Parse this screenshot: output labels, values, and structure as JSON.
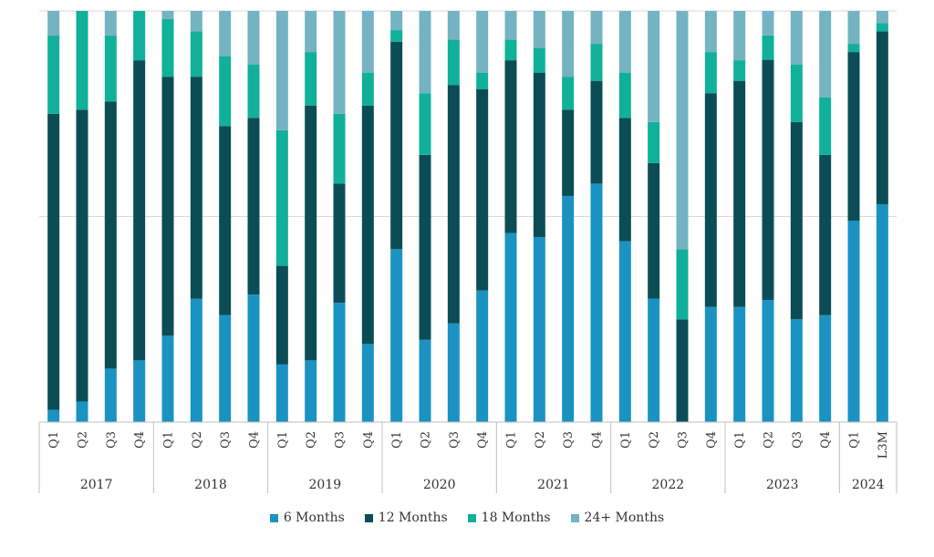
{
  "chart_data": {
    "type": "bar",
    "stacked": true,
    "normalized": true,
    "ylim": [
      0,
      1
    ],
    "grid": true,
    "legend_position": "bottom",
    "categories": [
      "Q1",
      "Q2",
      "Q3",
      "Q4",
      "Q1",
      "Q2",
      "Q3",
      "Q4",
      "Q1",
      "Q2",
      "Q3",
      "Q4",
      "Q1",
      "Q2",
      "Q3",
      "Q4",
      "Q1",
      "Q2",
      "Q3",
      "Q4",
      "Q1",
      "Q2",
      "Q3",
      "Q4",
      "Q1",
      "Q2",
      "Q3",
      "Q4",
      "Q1",
      "L3M"
    ],
    "groups": [
      {
        "label": "2017",
        "count": 4
      },
      {
        "label": "2018",
        "count": 4
      },
      {
        "label": "2019",
        "count": 4
      },
      {
        "label": "2020",
        "count": 4
      },
      {
        "label": "2021",
        "count": 4
      },
      {
        "label": "2022",
        "count": 4
      },
      {
        "label": "2023",
        "count": 4
      },
      {
        "label": "2024",
        "count": 2
      }
    ],
    "series": [
      {
        "name": "6 Months",
        "color": "#1a93c2",
        "values": [
          0.03,
          0.05,
          0.13,
          0.15,
          0.21,
          0.3,
          0.26,
          0.31,
          0.14,
          0.15,
          0.29,
          0.19,
          0.45,
          0.2,
          0.24,
          0.32,
          0.46,
          0.45,
          0.55,
          0.58,
          0.44,
          0.3,
          0.0,
          0.28,
          0.28,
          0.3,
          0.25,
          0.26,
          0.49,
          0.53
        ]
      },
      {
        "name": "12 Months",
        "color": "#0b4d57",
        "values": [
          0.72,
          0.71,
          0.65,
          0.73,
          0.63,
          0.54,
          0.46,
          0.43,
          0.24,
          0.62,
          0.29,
          0.58,
          0.54,
          0.45,
          0.58,
          0.49,
          0.42,
          0.4,
          0.21,
          0.25,
          0.3,
          0.33,
          0.25,
          0.52,
          0.55,
          0.59,
          0.48,
          0.39,
          0.41,
          0.42
        ]
      },
      {
        "name": "18 Months",
        "color": "#10b09a",
        "values": [
          0.19,
          0.24,
          0.16,
          0.12,
          0.14,
          0.11,
          0.17,
          0.13,
          0.33,
          0.13,
          0.17,
          0.08,
          0.03,
          0.15,
          0.11,
          0.04,
          0.05,
          0.06,
          0.08,
          0.09,
          0.11,
          0.1,
          0.17,
          0.1,
          0.05,
          0.06,
          0.14,
          0.14,
          0.02,
          0.02
        ]
      },
      {
        "name": "24+ Months",
        "color": "#74b3c2",
        "values": [
          0.06,
          0.0,
          0.06,
          0.0,
          0.02,
          0.05,
          0.11,
          0.13,
          0.29,
          0.1,
          0.25,
          0.15,
          0.05,
          0.2,
          0.07,
          0.15,
          0.07,
          0.09,
          0.16,
          0.08,
          0.15,
          0.27,
          0.58,
          0.1,
          0.12,
          0.06,
          0.13,
          0.21,
          0.08,
          0.03
        ]
      }
    ]
  }
}
